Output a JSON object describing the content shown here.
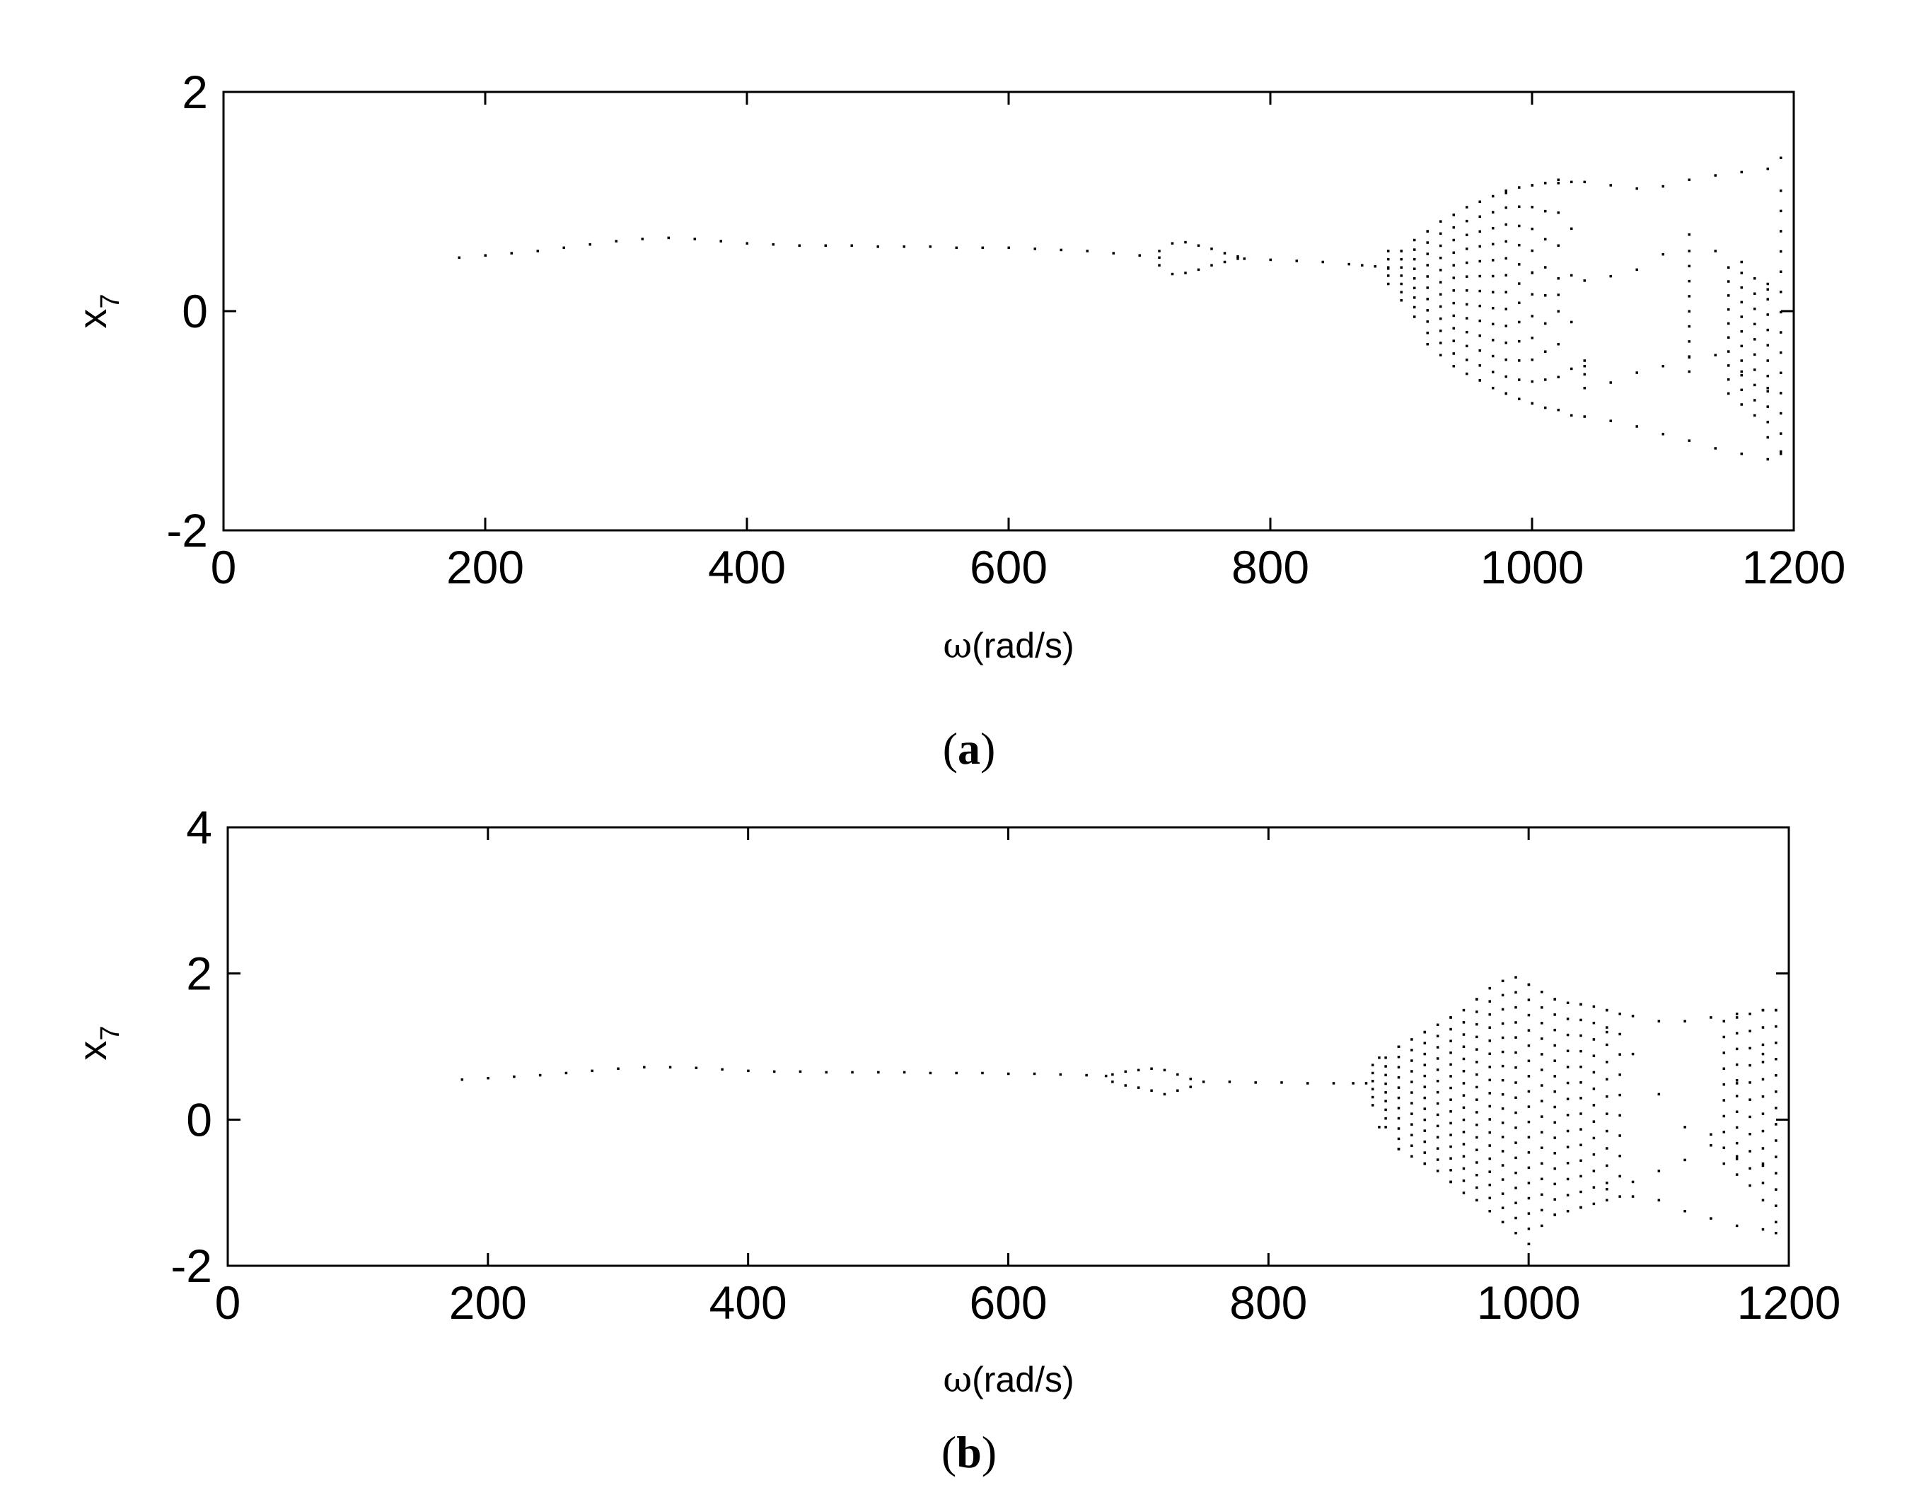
{
  "chart_data": [
    {
      "type": "scatter",
      "panel_label": "(a)",
      "panel_letter": "a",
      "xlabel_symbol": "ω",
      "xlabel_rest": "(rad/s)",
      "ylabel": "x",
      "ylabel_subscript": "7",
      "xlim": [
        0,
        1200
      ],
      "ylim": [
        -2,
        2
      ],
      "xticks": [
        "0",
        "200",
        "400",
        "600",
        "800",
        "1000",
        "1200"
      ],
      "yticks": [
        "-2",
        "0",
        "2"
      ],
      "xtick_values": [
        0,
        200,
        400,
        600,
        800,
        1000,
        1200
      ],
      "ytick_values": [
        -2,
        0,
        2
      ],
      "grid": false,
      "marker_color": "#000000",
      "description_of_data": "bifurcation points; single branch then period-doubling and chaotic region",
      "branches": [
        {
          "x": [
            180,
            200,
            220,
            240,
            260,
            280,
            300,
            320,
            340,
            360,
            380,
            400,
            420,
            440,
            460,
            480,
            500,
            520,
            540,
            560,
            580,
            600,
            620,
            640,
            660,
            680,
            700,
            715
          ],
          "y": [
            0.49,
            0.51,
            0.53,
            0.55,
            0.58,
            0.61,
            0.64,
            0.66,
            0.67,
            0.66,
            0.64,
            0.62,
            0.61,
            0.6,
            0.6,
            0.6,
            0.59,
            0.59,
            0.59,
            0.58,
            0.58,
            0.58,
            0.57,
            0.56,
            0.55,
            0.53,
            0.51,
            0.49
          ]
        },
        {
          "x": [
            715,
            725,
            735,
            745,
            755,
            765,
            775
          ],
          "y": [
            0.55,
            0.62,
            0.63,
            0.6,
            0.57,
            0.53,
            0.5
          ]
        },
        {
          "x": [
            715,
            725,
            735,
            745,
            755,
            765,
            775
          ],
          "y": [
            0.42,
            0.34,
            0.35,
            0.38,
            0.42,
            0.45,
            0.48
          ]
        },
        {
          "x": [
            780,
            800,
            820,
            840,
            860,
            870,
            880,
            890
          ],
          "y": [
            0.48,
            0.47,
            0.46,
            0.45,
            0.43,
            0.42,
            0.41,
            0.39
          ]
        },
        {
          "x": [
            900,
            920,
            940,
            960,
            980,
            1000,
            1020,
            1040,
            1060,
            1080,
            1100,
            1120,
            1140,
            1160,
            1180,
            1190
          ],
          "y": [
            0.55,
            0.73,
            0.88,
            1.0,
            1.08,
            1.15,
            1.17,
            1.18,
            1.15,
            1.12,
            1.14,
            1.2,
            1.24,
            1.27,
            1.3,
            1.4
          ]
        },
        {
          "x": [
            900,
            920,
            940,
            960,
            980,
            1000,
            1020,
            1040,
            1060,
            1080,
            1100,
            1120,
            1140,
            1160,
            1180,
            1190
          ],
          "y": [
            0.1,
            -0.3,
            -0.5,
            -0.63,
            -0.75,
            -0.84,
            -0.9,
            -0.96,
            -1.0,
            -1.05,
            -1.12,
            -1.18,
            -1.25,
            -1.3,
            -1.35,
            -1.28
          ]
        },
        {
          "x": [
            1000,
            1020,
            1040,
            1060,
            1080,
            1100,
            1120,
            1140,
            1160,
            1180
          ],
          "y": [
            0.35,
            0.15,
            -0.5,
            -0.65,
            -0.56,
            -0.5,
            -0.42,
            -0.4,
            -0.55,
            -0.7
          ]
        },
        {
          "x": [
            1040,
            1060,
            1080,
            1100,
            1120,
            1140,
            1160,
            1180
          ],
          "y": [
            0.28,
            0.32,
            0.38,
            0.52,
            0.7,
            0.55,
            0.45,
            0.2
          ]
        }
      ],
      "bands": [
        {
          "x": 890,
          "ymin": 0.25,
          "ymax": 0.55,
          "n": 5
        },
        {
          "x": 900,
          "ymin": 0.1,
          "ymax": 0.55,
          "n": 7
        },
        {
          "x": 910,
          "ymin": -0.05,
          "ymax": 0.65,
          "n": 9
        },
        {
          "x": 920,
          "ymin": -0.3,
          "ymax": 0.73,
          "n": 11
        },
        {
          "x": 930,
          "ymin": -0.4,
          "ymax": 0.82,
          "n": 12
        },
        {
          "x": 940,
          "ymin": -0.5,
          "ymax": 0.88,
          "n": 13
        },
        {
          "x": 950,
          "ymin": -0.57,
          "ymax": 0.95,
          "n": 13
        },
        {
          "x": 960,
          "ymin": -0.63,
          "ymax": 1.0,
          "n": 13
        },
        {
          "x": 970,
          "ymin": -0.7,
          "ymax": 1.05,
          "n": 13
        },
        {
          "x": 980,
          "ymin": -0.75,
          "ymax": 1.1,
          "n": 13
        },
        {
          "x": 990,
          "ymin": -0.8,
          "ymax": 1.13,
          "n": 12
        },
        {
          "x": 1000,
          "ymin": -0.84,
          "ymax": 1.15,
          "n": 11
        },
        {
          "x": 1010,
          "ymin": -0.88,
          "ymax": 1.17,
          "n": 9
        },
        {
          "x": 1020,
          "ymin": -0.9,
          "ymax": 1.2,
          "n": 8
        },
        {
          "x": 1030,
          "ymin": -0.95,
          "ymax": 1.18,
          "n": 6
        },
        {
          "x": 1040,
          "ymin": -0.7,
          "ymax": -0.45,
          "n": 3
        },
        {
          "x": 1120,
          "ymin": -0.55,
          "ymax": 0.55,
          "n": 9
        },
        {
          "x": 1150,
          "ymin": -0.75,
          "ymax": 0.4,
          "n": 10
        },
        {
          "x": 1160,
          "ymin": -0.85,
          "ymax": 0.35,
          "n": 10
        },
        {
          "x": 1170,
          "ymin": -0.95,
          "ymax": 0.3,
          "n": 10
        },
        {
          "x": 1180,
          "ymin": -1.15,
          "ymax": 0.25,
          "n": 11
        },
        {
          "x": 1190,
          "ymin": -1.3,
          "ymax": 1.1,
          "n": 14
        }
      ]
    },
    {
      "type": "scatter",
      "panel_label": "(b)",
      "panel_letter": "b",
      "xlabel_symbol": "ω",
      "xlabel_rest": "(rad/s)",
      "ylabel": "x",
      "ylabel_subscript": "7",
      "xlim": [
        0,
        1200
      ],
      "ylim": [
        -2,
        4
      ],
      "xticks": [
        "0",
        "200",
        "400",
        "600",
        "800",
        "1000",
        "1200"
      ],
      "yticks": [
        "-2",
        "0",
        "2",
        "4"
      ],
      "xtick_values": [
        0,
        200,
        400,
        600,
        800,
        1000,
        1200
      ],
      "ytick_values": [
        -2,
        0,
        2,
        4
      ],
      "grid": false,
      "marker_color": "#000000",
      "branches": [
        {
          "x": [
            180,
            200,
            220,
            240,
            260,
            280,
            300,
            320,
            340,
            360,
            380,
            400,
            420,
            440,
            460,
            480,
            500,
            520,
            540,
            560,
            580,
            600,
            620,
            640,
            660,
            675
          ],
          "y": [
            0.55,
            0.57,
            0.59,
            0.61,
            0.64,
            0.67,
            0.7,
            0.72,
            0.72,
            0.71,
            0.69,
            0.67,
            0.66,
            0.66,
            0.65,
            0.65,
            0.65,
            0.65,
            0.64,
            0.64,
            0.64,
            0.63,
            0.63,
            0.62,
            0.61,
            0.6
          ]
        },
        {
          "x": [
            680,
            690,
            700,
            710,
            720,
            730,
            740
          ],
          "y": [
            0.62,
            0.66,
            0.68,
            0.7,
            0.68,
            0.62,
            0.56
          ]
        },
        {
          "x": [
            680,
            690,
            700,
            710,
            720,
            730,
            740
          ],
          "y": [
            0.52,
            0.47,
            0.44,
            0.4,
            0.35,
            0.4,
            0.45
          ]
        },
        {
          "x": [
            750,
            770,
            790,
            810,
            830,
            850,
            865,
            875
          ],
          "y": [
            0.52,
            0.52,
            0.51,
            0.51,
            0.5,
            0.5,
            0.5,
            0.5
          ]
        },
        {
          "x": [
            885,
            900,
            920,
            940,
            960,
            980,
            1000,
            1020,
            1040,
            1060,
            1080,
            1100,
            1120,
            1140,
            1160,
            1180,
            1190
          ],
          "y": [
            0.85,
            1.0,
            1.2,
            1.4,
            1.65,
            1.9,
            1.85,
            1.65,
            1.58,
            1.5,
            1.42,
            1.35,
            1.35,
            1.4,
            1.45,
            1.5,
            1.5
          ]
        },
        {
          "x": [
            885,
            900,
            920,
            940,
            960,
            980,
            1000,
            1020,
            1040,
            1060,
            1080,
            1100,
            1120,
            1140,
            1160,
            1180,
            1190
          ],
          "y": [
            -0.1,
            -0.4,
            -0.6,
            -0.85,
            -1.1,
            -1.4,
            -1.7,
            -1.3,
            -1.2,
            -1.1,
            -1.05,
            -1.1,
            -1.25,
            -1.35,
            -1.45,
            -1.5,
            -1.55
          ]
        },
        {
          "x": [
            1060,
            1080,
            1100,
            1120,
            1140,
            1160,
            1180
          ],
          "y": [
            1.2,
            0.9,
            0.35,
            -0.1,
            -0.35,
            -0.5,
            -0.6
          ]
        },
        {
          "x": [
            1060,
            1080,
            1100,
            1120,
            1140,
            1160,
            1180
          ],
          "y": [
            -0.95,
            -0.85,
            -0.7,
            -0.55,
            -0.2,
            0.5,
            0.9
          ]
        }
      ],
      "bands": [
        {
          "x": 880,
          "ymin": 0.2,
          "ymax": 0.75,
          "n": 6
        },
        {
          "x": 890,
          "ymin": -0.1,
          "ymax": 0.85,
          "n": 9
        },
        {
          "x": 900,
          "ymin": -0.4,
          "ymax": 1.0,
          "n": 11
        },
        {
          "x": 910,
          "ymin": -0.5,
          "ymax": 1.1,
          "n": 12
        },
        {
          "x": 920,
          "ymin": -0.6,
          "ymax": 1.2,
          "n": 13
        },
        {
          "x": 930,
          "ymin": -0.7,
          "ymax": 1.3,
          "n": 14
        },
        {
          "x": 940,
          "ymin": -0.85,
          "ymax": 1.4,
          "n": 15
        },
        {
          "x": 950,
          "ymin": -1.0,
          "ymax": 1.5,
          "n": 16
        },
        {
          "x": 960,
          "ymin": -1.1,
          "ymax": 1.65,
          "n": 17
        },
        {
          "x": 970,
          "ymin": -1.25,
          "ymax": 1.8,
          "n": 18
        },
        {
          "x": 980,
          "ymin": -1.4,
          "ymax": 1.9,
          "n": 18
        },
        {
          "x": 990,
          "ymin": -1.55,
          "ymax": 1.95,
          "n": 18
        },
        {
          "x": 1000,
          "ymin": -1.7,
          "ymax": 1.85,
          "n": 18
        },
        {
          "x": 1010,
          "ymin": -1.45,
          "ymax": 1.75,
          "n": 16
        },
        {
          "x": 1020,
          "ymin": -1.3,
          "ymax": 1.65,
          "n": 15
        },
        {
          "x": 1030,
          "ymin": -1.25,
          "ymax": 1.6,
          "n": 14
        },
        {
          "x": 1040,
          "ymin": -1.2,
          "ymax": 1.58,
          "n": 14
        },
        {
          "x": 1050,
          "ymin": -1.15,
          "ymax": 1.55,
          "n": 13
        },
        {
          "x": 1060,
          "ymin": -1.1,
          "ymax": 1.5,
          "n": 12
        },
        {
          "x": 1070,
          "ymin": -1.05,
          "ymax": 1.45,
          "n": 10
        },
        {
          "x": 1150,
          "ymin": -0.6,
          "ymax": 1.35,
          "n": 10
        },
        {
          "x": 1160,
          "ymin": -0.75,
          "ymax": 1.4,
          "n": 11
        },
        {
          "x": 1170,
          "ymin": -0.9,
          "ymax": 1.45,
          "n": 11
        },
        {
          "x": 1180,
          "ymin": -1.1,
          "ymax": 1.5,
          "n": 12
        },
        {
          "x": 1190,
          "ymin": -1.4,
          "ymax": 1.5,
          "n": 14
        }
      ]
    }
  ]
}
